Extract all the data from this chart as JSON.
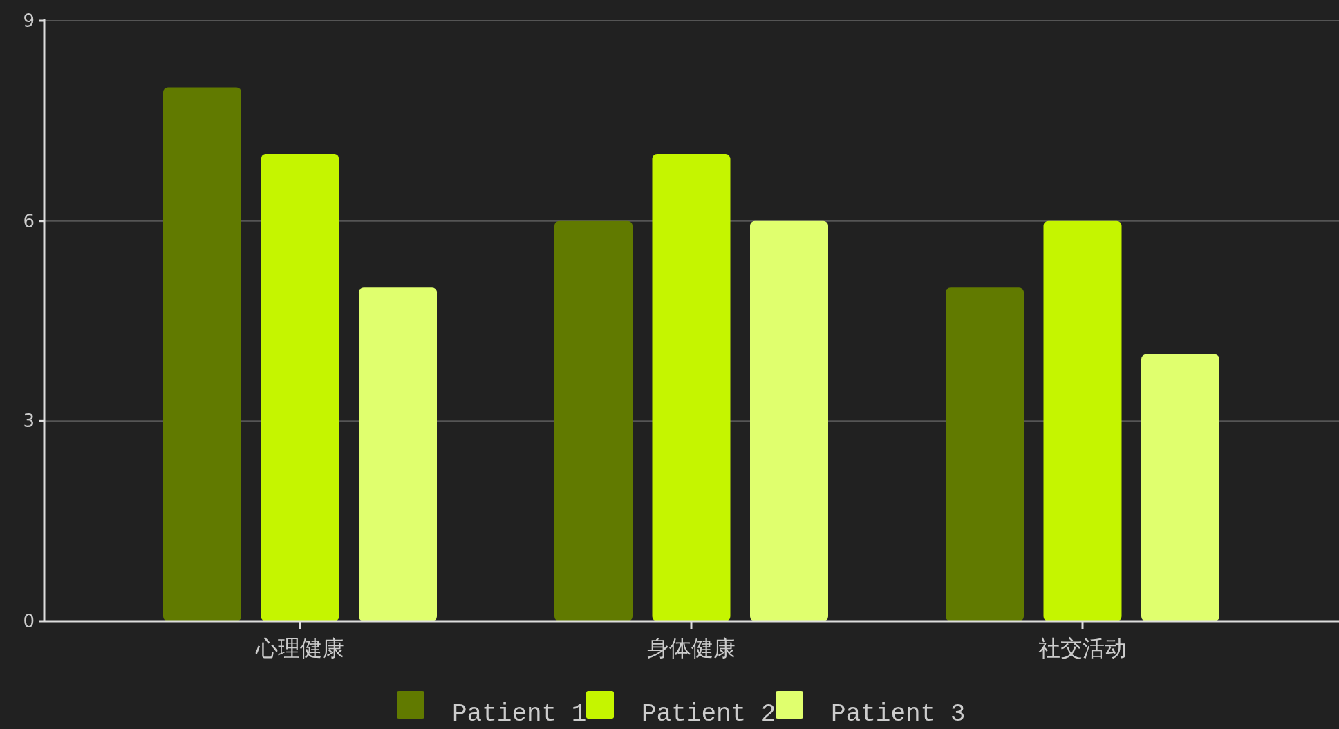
{
  "chart_data": {
    "type": "bar",
    "categories": [
      "心理健康",
      "身体健康",
      "社交活动"
    ],
    "series": [
      {
        "name": "Patient 1",
        "color": "#617a00",
        "values": [
          8,
          6,
          5
        ]
      },
      {
        "name": "Patient 2",
        "color": "#c5f500",
        "values": [
          7,
          7,
          6
        ]
      },
      {
        "name": "Patient 3",
        "color": "#e0ff6e",
        "values": [
          5,
          6,
          4
        ]
      }
    ],
    "ylim": [
      0,
      9
    ],
    "yticks": [
      0,
      3,
      6,
      9
    ],
    "grid": "y",
    "legend": "bottom"
  }
}
